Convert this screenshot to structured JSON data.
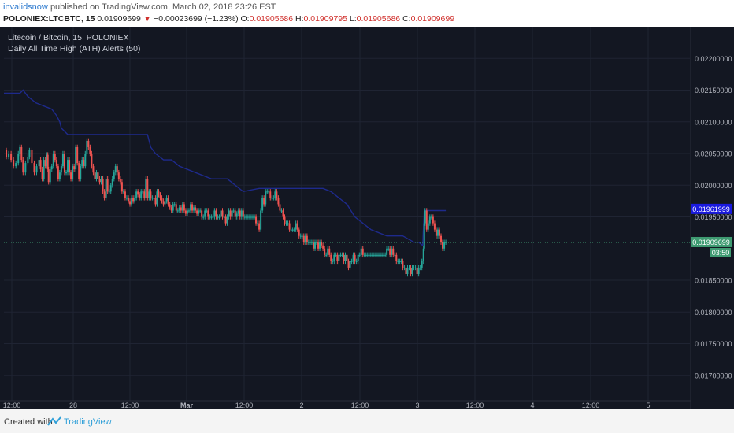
{
  "header": {
    "author": "invalidsnow",
    "published_text": "published on TradingView.com, March 02, 2018 23:26 EST",
    "symbol": "POLONIEX:LTCBTC, 15",
    "last": "0.01909699",
    "change_arrow": "▼",
    "change": "−0.00023699 (−1.23%)",
    "o_label": "O:",
    "o_value": "0.01905686",
    "h_label": "H:",
    "h_value": "0.01909795",
    "l_label": "L:",
    "l_value": "0.01905686",
    "c_label": "C:",
    "c_value": "0.01909699"
  },
  "legend": {
    "title": "Litecoin / Bitcoin, 15, POLONIEX",
    "indicator": "Daily All Time High (ATH) Alerts (50)"
  },
  "footer": {
    "created_with": "Created with",
    "brand": "TradingView"
  },
  "colors": {
    "background": "#131722",
    "grid": "#1f2433",
    "up": "#26a69a",
    "down": "#ef5350",
    "ath_line": "#1e2a8c",
    "ath_badge": "#1a1adf",
    "price_badge": "#3f9b72",
    "axis_text": "#b2b5be"
  },
  "chart_data": {
    "type": "candlestick",
    "y_tick_labels": [
      "0.02200000",
      "0.02150000",
      "0.02100000",
      "0.02050000",
      "0.02000000",
      "0.01950000",
      "0.01850000",
      "0.01800000",
      "0.01750000",
      "0.01700000"
    ],
    "y_ticks": [
      0.022,
      0.0215,
      0.021,
      0.0205,
      0.02,
      0.0195,
      0.0185,
      0.018,
      0.0175,
      0.017
    ],
    "ylim": [
      0.0166,
      0.0225
    ],
    "x_tick_labels": [
      "12:00",
      "28",
      "12:00",
      "Mar",
      "12:00",
      "2",
      "12:00",
      "3",
      "12:00",
      "4",
      "12:00",
      "5"
    ],
    "ath_label": "0.01961999",
    "price_label": "0.01909699",
    "countdown_label": "03:50",
    "ath_value": 0.01962,
    "last_price": 0.019097,
    "price_path": [
      [
        0,
        0.02055
      ],
      [
        3,
        0.02045
      ],
      [
        6,
        0.0205
      ],
      [
        9,
        0.0204
      ],
      [
        12,
        0.0203
      ],
      [
        15,
        0.02035
      ],
      [
        18,
        0.0205
      ],
      [
        20,
        0.0206
      ],
      [
        22,
        0.0204
      ],
      [
        24,
        0.0202
      ],
      [
        27,
        0.02035
      ],
      [
        30,
        0.02045
      ],
      [
        32,
        0.02055
      ],
      [
        35,
        0.02035
      ],
      [
        38,
        0.0202
      ],
      [
        41,
        0.0203
      ],
      [
        44,
        0.0204
      ],
      [
        46,
        0.02025
      ],
      [
        48,
        0.0201
      ],
      [
        50,
        0.0204
      ],
      [
        52,
        0.0203
      ],
      [
        54,
        0.02048
      ],
      [
        55,
        0.02025
      ],
      [
        56,
        0.02005
      ],
      [
        58,
        0.02025
      ],
      [
        60,
        0.0203
      ],
      [
        62,
        0.0205
      ],
      [
        64,
        0.0204
      ],
      [
        66,
        0.0203
      ],
      [
        68,
        0.0201
      ],
      [
        70,
        0.0202
      ],
      [
        72,
        0.0203
      ],
      [
        74,
        0.0205
      ],
      [
        76,
        0.0202
      ],
      [
        78,
        0.0202
      ],
      [
        80,
        0.0204
      ],
      [
        82,
        0.0202
      ],
      [
        84,
        0.0201
      ],
      [
        86,
        0.0203
      ],
      [
        88,
        0.02025
      ],
      [
        90,
        0.0206
      ],
      [
        92,
        0.02035
      ],
      [
        94,
        0.0201
      ],
      [
        96,
        0.0203
      ],
      [
        98,
        0.0204
      ],
      [
        100,
        0.0203
      ],
      [
        102,
        0.0205
      ],
      [
        104,
        0.0207
      ],
      [
        106,
        0.0206
      ],
      [
        108,
        0.0205
      ],
      [
        110,
        0.0203
      ],
      [
        112,
        0.0202
      ],
      [
        114,
        0.0201
      ],
      [
        116,
        0.0202
      ],
      [
        118,
        0.0201
      ],
      [
        120,
        0.02005
      ],
      [
        122,
        0.0201
      ],
      [
        124,
        0.0199
      ],
      [
        126,
        0.0198
      ],
      [
        128,
        0.0201
      ],
      [
        130,
        0.0199
      ],
      [
        132,
        0.0199
      ],
      [
        134,
        0.02
      ],
      [
        136,
        0.0201
      ],
      [
        138,
        0.0202
      ],
      [
        140,
        0.0203
      ],
      [
        142,
        0.0202
      ],
      [
        144,
        0.0201
      ],
      [
        146,
        0.02005
      ],
      [
        148,
        0.0199
      ],
      [
        150,
        0.0199
      ],
      [
        152,
        0.0198
      ],
      [
        154,
        0.0198
      ],
      [
        156,
        0.01975
      ],
      [
        158,
        0.0197
      ],
      [
        160,
        0.0198
      ],
      [
        162,
        0.01975
      ],
      [
        164,
        0.0198
      ],
      [
        166,
        0.0199
      ],
      [
        168,
        0.01985
      ],
      [
        170,
        0.0198
      ],
      [
        172,
        0.0199
      ],
      [
        174,
        0.0199
      ],
      [
        176,
        0.0198
      ],
      [
        178,
        0.0201
      ],
      [
        180,
        0.0198
      ],
      [
        182,
        0.0199
      ],
      [
        184,
        0.0198
      ],
      [
        186,
        0.0198
      ],
      [
        188,
        0.0198
      ],
      [
        190,
        0.0197
      ],
      [
        192,
        0.0199
      ],
      [
        194,
        0.01985
      ],
      [
        196,
        0.0198
      ],
      [
        198,
        0.01975
      ],
      [
        200,
        0.0197
      ],
      [
        202,
        0.01975
      ],
      [
        204,
        0.0198
      ],
      [
        206,
        0.0197
      ],
      [
        208,
        0.01965
      ],
      [
        210,
        0.0196
      ],
      [
        212,
        0.0197
      ],
      [
        214,
        0.0197
      ],
      [
        216,
        0.0196
      ],
      [
        218,
        0.0196
      ],
      [
        220,
        0.01965
      ],
      [
        222,
        0.0196
      ],
      [
        224,
        0.0197
      ],
      [
        226,
        0.0196
      ],
      [
        228,
        0.01955
      ],
      [
        230,
        0.0196
      ],
      [
        232,
        0.0196
      ],
      [
        234,
        0.0197
      ],
      [
        236,
        0.0196
      ],
      [
        238,
        0.01965
      ],
      [
        240,
        0.0196
      ],
      [
        242,
        0.01955
      ],
      [
        244,
        0.0196
      ],
      [
        246,
        0.0196
      ],
      [
        248,
        0.0195
      ],
      [
        250,
        0.0195
      ],
      [
        252,
        0.0196
      ],
      [
        254,
        0.0196
      ],
      [
        256,
        0.0195
      ],
      [
        258,
        0.0195
      ],
      [
        260,
        0.0195
      ],
      [
        262,
        0.0195
      ],
      [
        264,
        0.0196
      ],
      [
        266,
        0.0195
      ],
      [
        268,
        0.0195
      ],
      [
        270,
        0.0195
      ],
      [
        272,
        0.0196
      ],
      [
        274,
        0.0195
      ],
      [
        276,
        0.0195
      ],
      [
        278,
        0.0194
      ],
      [
        280,
        0.0195
      ],
      [
        282,
        0.0196
      ],
      [
        284,
        0.0195
      ],
      [
        286,
        0.0196
      ],
      [
        288,
        0.0196
      ],
      [
        290,
        0.0195
      ],
      [
        292,
        0.01955
      ],
      [
        294,
        0.0196
      ],
      [
        296,
        0.0195
      ],
      [
        298,
        0.0196
      ],
      [
        300,
        0.0195
      ],
      [
        302,
        0.0195
      ],
      [
        304,
        0.0195
      ],
      [
        306,
        0.0195
      ],
      [
        308,
        0.0195
      ],
      [
        310,
        0.0195
      ],
      [
        312,
        0.0195
      ],
      [
        314,
        0.0195
      ],
      [
        316,
        0.0194
      ],
      [
        318,
        0.0194
      ],
      [
        320,
        0.0193
      ],
      [
        322,
        0.0196
      ],
      [
        324,
        0.0198
      ],
      [
        326,
        0.0197
      ],
      [
        328,
        0.0199
      ],
      [
        330,
        0.0199
      ],
      [
        332,
        0.0199
      ],
      [
        334,
        0.0198
      ],
      [
        336,
        0.0198
      ],
      [
        338,
        0.0198
      ],
      [
        340,
        0.0199
      ],
      [
        342,
        0.0198
      ],
      [
        344,
        0.0197
      ],
      [
        346,
        0.0196
      ],
      [
        348,
        0.0196
      ],
      [
        350,
        0.0195
      ],
      [
        352,
        0.0194
      ],
      [
        354,
        0.0194
      ],
      [
        356,
        0.0194
      ],
      [
        358,
        0.0193
      ],
      [
        360,
        0.0193
      ],
      [
        362,
        0.0193
      ],
      [
        364,
        0.0193
      ],
      [
        366,
        0.0194
      ],
      [
        368,
        0.0193
      ],
      [
        370,
        0.0192
      ],
      [
        372,
        0.0192
      ],
      [
        374,
        0.0192
      ],
      [
        376,
        0.0191
      ],
      [
        378,
        0.0192
      ],
      [
        380,
        0.0191
      ],
      [
        382,
        0.0191
      ],
      [
        384,
        0.0191
      ],
      [
        386,
        0.0191
      ],
      [
        388,
        0.019
      ],
      [
        390,
        0.0191
      ],
      [
        392,
        0.0191
      ],
      [
        394,
        0.019
      ],
      [
        396,
        0.0191
      ],
      [
        398,
        0.01905
      ],
      [
        400,
        0.019
      ],
      [
        402,
        0.0189
      ],
      [
        404,
        0.0189
      ],
      [
        406,
        0.019
      ],
      [
        408,
        0.0189
      ],
      [
        410,
        0.0188
      ],
      [
        412,
        0.0188
      ],
      [
        414,
        0.0189
      ],
      [
        416,
        0.0189
      ],
      [
        418,
        0.0188
      ],
      [
        420,
        0.0189
      ],
      [
        422,
        0.0189
      ],
      [
        424,
        0.0189
      ],
      [
        426,
        0.0188
      ],
      [
        428,
        0.0189
      ],
      [
        430,
        0.0188
      ],
      [
        432,
        0.0187
      ],
      [
        434,
        0.0188
      ],
      [
        436,
        0.0188
      ],
      [
        438,
        0.0189
      ],
      [
        440,
        0.0188
      ],
      [
        442,
        0.0188
      ],
      [
        444,
        0.0189
      ],
      [
        446,
        0.0189
      ],
      [
        448,
        0.019
      ],
      [
        450,
        0.0189
      ],
      [
        452,
        0.0189
      ],
      [
        454,
        0.0189
      ],
      [
        456,
        0.0189
      ],
      [
        458,
        0.0189
      ],
      [
        460,
        0.0189
      ],
      [
        462,
        0.0189
      ],
      [
        464,
        0.0189
      ],
      [
        466,
        0.0189
      ],
      [
        468,
        0.0189
      ],
      [
        470,
        0.0189
      ],
      [
        472,
        0.0189
      ],
      [
        474,
        0.0189
      ],
      [
        476,
        0.0189
      ],
      [
        478,
        0.0189
      ],
      [
        480,
        0.019
      ],
      [
        482,
        0.019
      ],
      [
        484,
        0.0189
      ],
      [
        486,
        0.019
      ],
      [
        488,
        0.0189
      ],
      [
        490,
        0.0189
      ],
      [
        492,
        0.0188
      ],
      [
        494,
        0.0188
      ],
      [
        496,
        0.0188
      ],
      [
        498,
        0.0188
      ],
      [
        500,
        0.0187
      ],
      [
        502,
        0.0187
      ],
      [
        504,
        0.0186
      ],
      [
        506,
        0.0187
      ],
      [
        508,
        0.0187
      ],
      [
        510,
        0.0186
      ],
      [
        512,
        0.0187
      ],
      [
        514,
        0.0187
      ],
      [
        516,
        0.0187
      ],
      [
        518,
        0.0186
      ],
      [
        520,
        0.0187
      ],
      [
        522,
        0.0187
      ],
      [
        524,
        0.0188
      ],
      [
        526,
        0.019
      ],
      [
        527,
        0.0194
      ],
      [
        528,
        0.0196
      ],
      [
        530,
        0.0193
      ],
      [
        532,
        0.0194
      ],
      [
        534,
        0.0195
      ],
      [
        536,
        0.0195
      ],
      [
        538,
        0.0194
      ],
      [
        540,
        0.0193
      ],
      [
        542,
        0.0192
      ],
      [
        544,
        0.0193
      ],
      [
        546,
        0.0192
      ],
      [
        548,
        0.0191
      ],
      [
        550,
        0.019
      ],
      [
        552,
        0.0191
      ],
      [
        554,
        0.0191
      ]
    ],
    "ath_path": [
      [
        0,
        0.02145
      ],
      [
        20,
        0.02145
      ],
      [
        24,
        0.0215
      ],
      [
        30,
        0.0214
      ],
      [
        40,
        0.0213
      ],
      [
        60,
        0.0212
      ],
      [
        66,
        0.0211
      ],
      [
        70,
        0.021
      ],
      [
        72,
        0.0209
      ],
      [
        80,
        0.0208
      ],
      [
        90,
        0.0208
      ],
      [
        110,
        0.0208
      ],
      [
        160,
        0.0208
      ],
      [
        180,
        0.0208
      ],
      [
        184,
        0.0206
      ],
      [
        190,
        0.0205
      ],
      [
        200,
        0.0204
      ],
      [
        210,
        0.0204
      ],
      [
        220,
        0.0203
      ],
      [
        240,
        0.0202
      ],
      [
        260,
        0.0201
      ],
      [
        280,
        0.0201
      ],
      [
        300,
        0.0199
      ],
      [
        320,
        0.01995
      ],
      [
        330,
        0.01995
      ],
      [
        340,
        0.01995
      ],
      [
        360,
        0.01995
      ],
      [
        400,
        0.01995
      ],
      [
        410,
        0.0199
      ],
      [
        420,
        0.0198
      ],
      [
        430,
        0.0197
      ],
      [
        440,
        0.0195
      ],
      [
        450,
        0.0194
      ],
      [
        460,
        0.0193
      ],
      [
        480,
        0.0192
      ],
      [
        500,
        0.0192
      ],
      [
        514,
        0.0191
      ],
      [
        520,
        0.0191
      ],
      [
        525,
        0.01905
      ],
      [
        527,
        0.0196
      ],
      [
        530,
        0.0196
      ],
      [
        540,
        0.0196
      ],
      [
        554,
        0.0196
      ]
    ]
  }
}
